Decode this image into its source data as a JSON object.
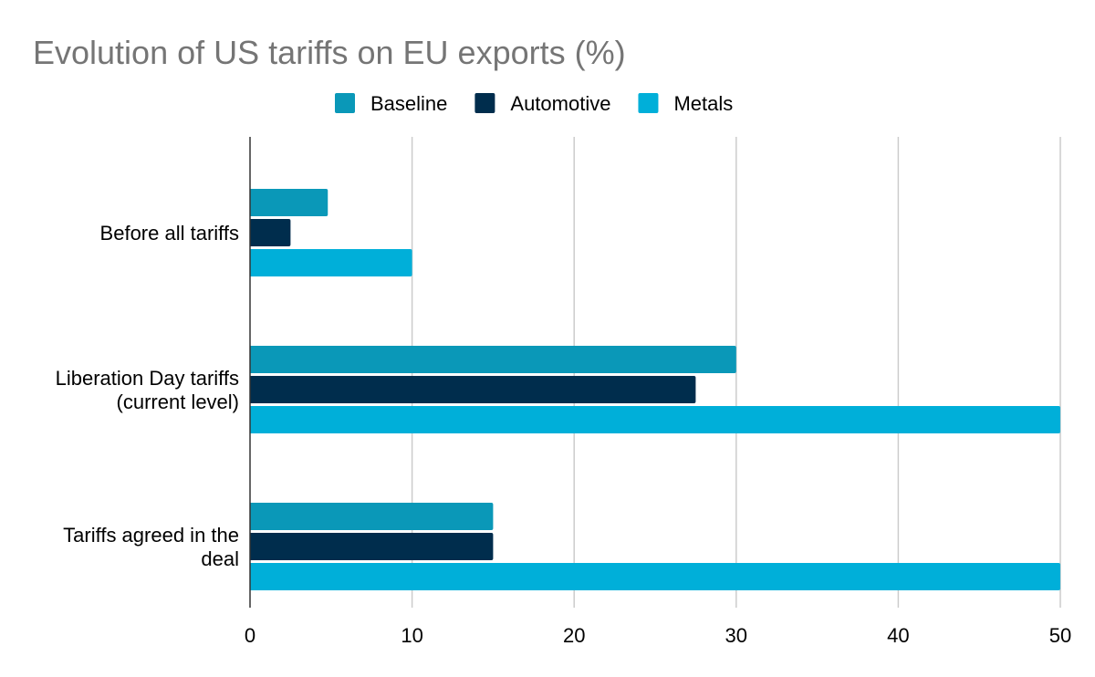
{
  "chart_data": {
    "type": "bar",
    "orientation": "horizontal",
    "title": "Evolution of US tariffs on EU exports (%)",
    "categories": [
      [
        "Before all tariffs"
      ],
      [
        "Liberation Day tariffs",
        "(current level)"
      ],
      [
        "Tariffs agreed in the",
        "deal"
      ]
    ],
    "series": [
      {
        "name": "Baseline",
        "color": "#0a98b8",
        "values": [
          4.8,
          30,
          15
        ]
      },
      {
        "name": "Automotive",
        "color": "#002d4d",
        "values": [
          2.5,
          27.5,
          15
        ]
      },
      {
        "name": "Metals",
        "color": "#00afd9",
        "values": [
          10,
          50,
          50
        ]
      }
    ],
    "xlim": [
      0,
      50
    ],
    "xticks": [
      "0",
      "10",
      "20",
      "30",
      "40",
      "50"
    ],
    "grid": true,
    "legend_position": "top",
    "xlabel": "",
    "ylabel": ""
  }
}
